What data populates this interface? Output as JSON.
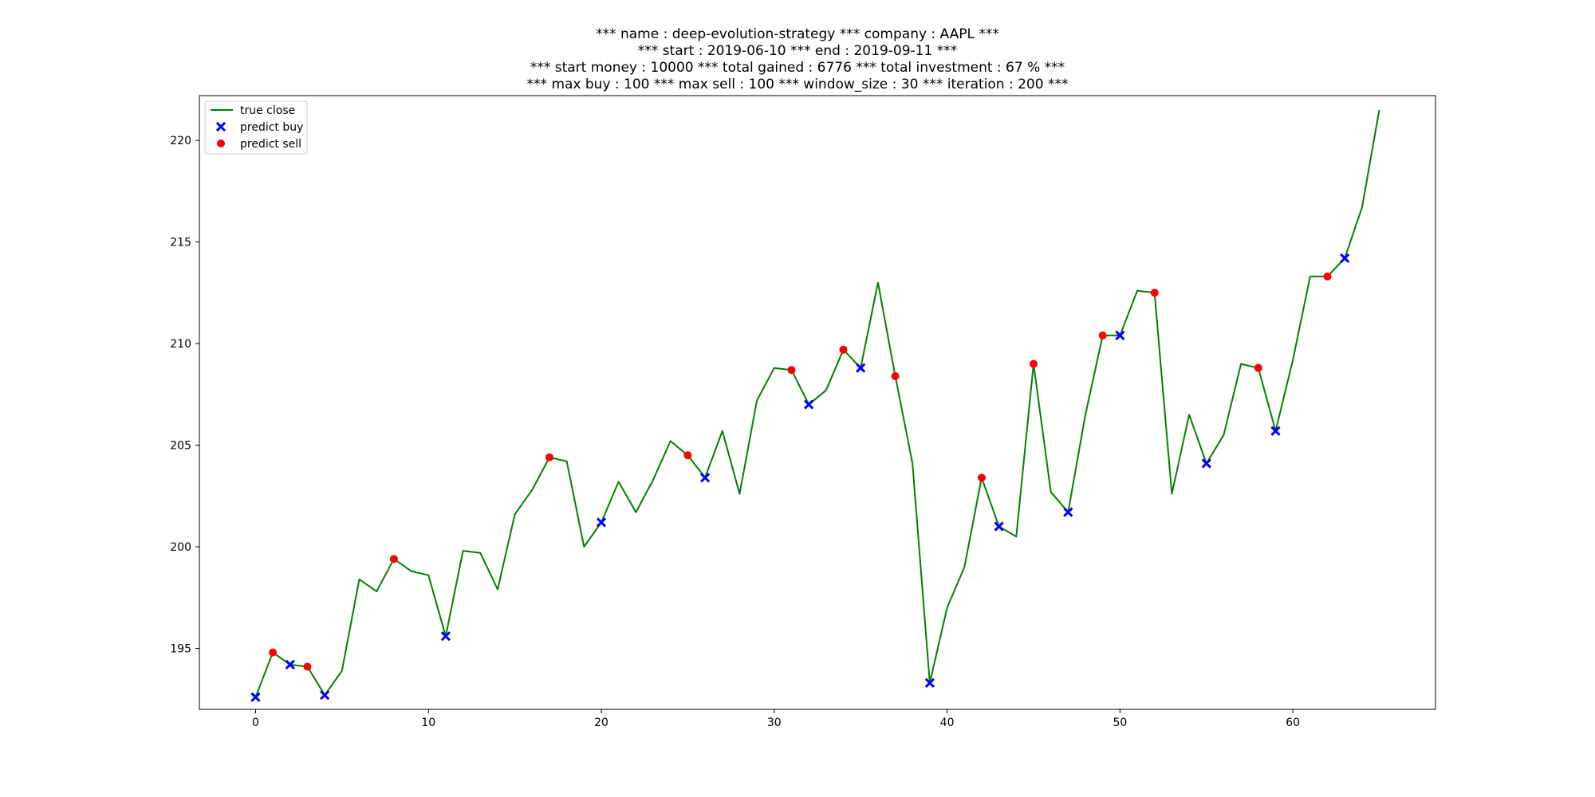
{
  "chart_data": {
    "type": "line",
    "title_lines": [
      "*** name : deep-evolution-strategy *** company : AAPL ***",
      "*** start : 2019-06-10 *** end : 2019-09-11 ***",
      "*** start money : 10000 *** total gained : 6776 *** total investment : 67 % ***",
      "*** max buy : 100 *** max sell : 100 *** window_size : 30 *** iteration : 200 ***"
    ],
    "xlabel": "",
    "ylabel": "",
    "xlim": [
      -3.25,
      68.25
    ],
    "ylim": [
      192.0,
      222.2
    ],
    "xticks": [
      0,
      10,
      20,
      30,
      40,
      50,
      60
    ],
    "yticks": [
      195,
      200,
      205,
      210,
      215,
      220
    ],
    "grid": false,
    "legend_position": "upper-left",
    "colors": {
      "line": "#008000",
      "buy": "#0000ff",
      "sell": "#ff0000"
    },
    "series": [
      {
        "name": "true close",
        "type": "line",
        "x": [
          0,
          1,
          2,
          3,
          4,
          5,
          6,
          7,
          8,
          9,
          10,
          11,
          12,
          13,
          14,
          15,
          16,
          17,
          18,
          19,
          20,
          21,
          22,
          23,
          24,
          25,
          26,
          27,
          28,
          29,
          30,
          31,
          32,
          33,
          34,
          35,
          36,
          37,
          38,
          39,
          40,
          41,
          42,
          43,
          44,
          45,
          46,
          47,
          48,
          49,
          50,
          51,
          52,
          53,
          54,
          55,
          56,
          57,
          58,
          59,
          60,
          61,
          62,
          63,
          64,
          65
        ],
        "y": [
          192.6,
          194.8,
          194.2,
          194.1,
          192.7,
          193.9,
          198.4,
          197.8,
          199.4,
          198.8,
          198.6,
          195.6,
          199.8,
          199.7,
          197.9,
          201.6,
          202.8,
          204.4,
          204.2,
          200.0,
          201.2,
          203.2,
          201.7,
          203.3,
          205.2,
          204.5,
          203.4,
          205.7,
          202.6,
          207.2,
          208.8,
          208.7,
          207.0,
          207.7,
          209.7,
          208.8,
          213.0,
          208.4,
          204.1,
          193.3,
          197.0,
          199.0,
          203.4,
          201.0,
          200.5,
          209.0,
          202.7,
          201.7,
          206.5,
          210.4,
          210.4,
          212.6,
          212.5,
          202.6,
          206.5,
          204.1,
          205.5,
          209.0,
          208.8,
          205.7,
          209.2,
          213.3,
          213.3,
          214.2,
          216.7,
          221.5
        ]
      },
      {
        "name": "predict buy",
        "type": "scatter",
        "marker": "x",
        "x": [
          0,
          2,
          4,
          11,
          20,
          26,
          32,
          35,
          39,
          43,
          47,
          50,
          55,
          59,
          63
        ],
        "y": [
          192.6,
          194.2,
          192.7,
          195.6,
          201.2,
          203.4,
          207.0,
          208.8,
          193.3,
          201.0,
          201.7,
          210.4,
          204.1,
          205.7,
          214.2
        ]
      },
      {
        "name": "predict sell",
        "type": "scatter",
        "marker": "o",
        "x": [
          1,
          3,
          8,
          17,
          25,
          31,
          34,
          37,
          42,
          45,
          49,
          52,
          58,
          62
        ],
        "y": [
          194.8,
          194.1,
          199.4,
          204.4,
          204.5,
          208.7,
          209.7,
          208.4,
          203.4,
          209.0,
          210.4,
          212.5,
          208.8,
          213.3
        ]
      }
    ]
  }
}
